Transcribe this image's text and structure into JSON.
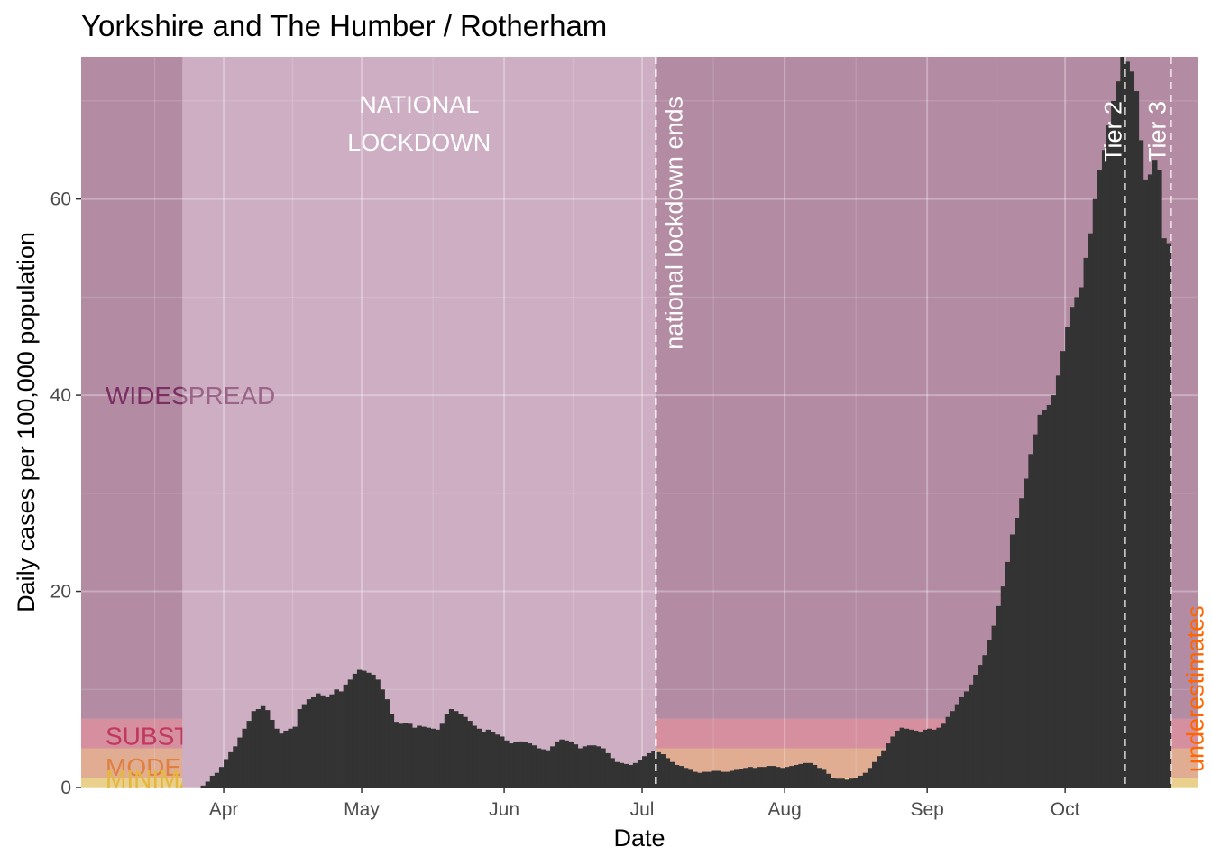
{
  "chart_data": {
    "type": "bar",
    "title": "Yorkshire and The Humber / Rotherham",
    "xlabel": "Date",
    "ylabel": "Daily cases per 100,000 population",
    "x_start": "2020-03-01",
    "x_end": "2020-10-30",
    "ylim": [
      0,
      74.5
    ],
    "y_ticks": [
      0,
      20,
      40,
      60
    ],
    "x_ticks": [
      {
        "label": "Apr",
        "date": "2020-04-01"
      },
      {
        "label": "May",
        "date": "2020-05-01"
      },
      {
        "label": "Jun",
        "date": "2020-06-01"
      },
      {
        "label": "Jul",
        "date": "2020-07-01"
      },
      {
        "label": "Aug",
        "date": "2020-08-01"
      },
      {
        "label": "Sep",
        "date": "2020-09-01"
      },
      {
        "label": "Oct",
        "date": "2020-10-01"
      }
    ],
    "grid": true,
    "bar_color": "#333333",
    "series_start": "2020-03-01",
    "values": [
      0,
      0,
      0,
      0,
      0,
      0,
      0,
      0,
      0,
      0,
      0,
      0,
      0,
      0,
      0,
      0,
      0,
      0,
      0,
      0,
      0,
      0,
      0,
      0,
      0,
      0,
      0.2,
      0.6,
      1.2,
      1.5,
      2.1,
      2.9,
      3.6,
      4.2,
      5.1,
      6.0,
      6.8,
      7.8,
      8.0,
      8.3,
      7.9,
      6.9,
      6.0,
      5.5,
      5.8,
      6.0,
      6.2,
      8.0,
      8.5,
      9.0,
      9.2,
      9.6,
      9.4,
      9.2,
      9.5,
      10.0,
      9.8,
      10.5,
      11.0,
      11.6,
      12.0,
      11.9,
      11.7,
      11.5,
      11.0,
      10.0,
      9.0,
      7.5,
      6.7,
      6.5,
      6.6,
      6.5,
      6.1,
      6.3,
      6.2,
      6.1,
      6.0,
      5.9,
      6.5,
      7.5,
      8.0,
      7.8,
      7.5,
      7.2,
      6.8,
      6.3,
      6.0,
      5.7,
      5.9,
      5.7,
      5.4,
      5.2,
      4.8,
      4.5,
      4.6,
      4.7,
      4.6,
      4.5,
      4.3,
      4.0,
      3.9,
      3.8,
      4.2,
      4.7,
      4.9,
      4.8,
      4.7,
      4.4,
      4.0,
      4.2,
      4.3,
      4.3,
      4.2,
      4.0,
      3.5,
      3.0,
      2.6,
      2.5,
      2.4,
      2.3,
      2.5,
      2.8,
      3.2,
      3.5,
      3.7,
      3.6,
      3.4,
      3.0,
      2.6,
      2.3,
      2.2,
      2.0,
      1.8,
      1.6,
      1.5,
      1.6,
      1.6,
      1.7,
      1.7,
      1.6,
      1.6,
      1.7,
      1.8,
      1.9,
      2.0,
      2.1,
      2.0,
      2.1,
      2.1,
      2.2,
      2.2,
      2.1,
      2.0,
      2.1,
      2.2,
      2.3,
      2.4,
      2.5,
      2.5,
      2.3,
      2.0,
      1.8,
      1.4,
      1.0,
      0.9,
      0.9,
      0.8,
      0.9,
      1.0,
      1.2,
      1.5,
      2.0,
      2.6,
      3.2,
      3.8,
      4.5,
      5.2,
      5.8,
      6.1,
      6.0,
      5.9,
      5.8,
      5.7,
      5.9,
      6.0,
      5.9,
      6.1,
      6.5,
      7.2,
      7.8,
      8.5,
      9.2,
      9.8,
      10.5,
      11.5,
      12.5,
      13.5,
      15.0,
      16.5,
      18.5,
      20.5,
      23.0,
      25.8,
      27.5,
      29.5,
      31.5,
      34.0,
      36.0,
      38.0,
      38.5,
      39.0,
      40.0,
      42.0,
      44.5,
      47.0,
      49.0,
      50.0,
      51.0,
      54.0,
      56.5,
      60.0,
      63.0,
      65.0,
      67.5,
      70.0,
      72.0,
      74.5,
      74.0,
      73.0,
      71.0,
      66.0,
      62.0,
      62.5,
      64.0,
      63.0,
      56.0,
      55.5
    ],
    "bands": [
      {
        "name": "WIDESPREAD",
        "from": 7,
        "to": 74.5,
        "color": "#b38ba3"
      },
      {
        "name": "SUBSTANTIAL",
        "from": 4,
        "to": 7,
        "color": "#d58f9f"
      },
      {
        "name": "MODERATE",
        "from": 1,
        "to": 4,
        "color": "#e0ac92"
      },
      {
        "name": "MINIMAL",
        "from": 0,
        "to": 1,
        "color": "#e9d08c"
      }
    ],
    "lockdown": {
      "label": "NATIONAL LOCKDOWN",
      "label_line1": "NATIONAL",
      "label_line2": "LOCKDOWN",
      "from": "2020-03-23",
      "to": "2020-07-04",
      "color": "#cdaec3"
    },
    "event_lines": [
      {
        "label": "national lockdown ends",
        "date": "2020-07-04"
      },
      {
        "label": "Tier 2",
        "date": "2020-10-14"
      },
      {
        "label": "Tier 3",
        "date": "2020-10-24"
      }
    ],
    "underestimate": {
      "label": "underestimates",
      "from": "2020-10-26",
      "color": "#ff6600"
    }
  }
}
